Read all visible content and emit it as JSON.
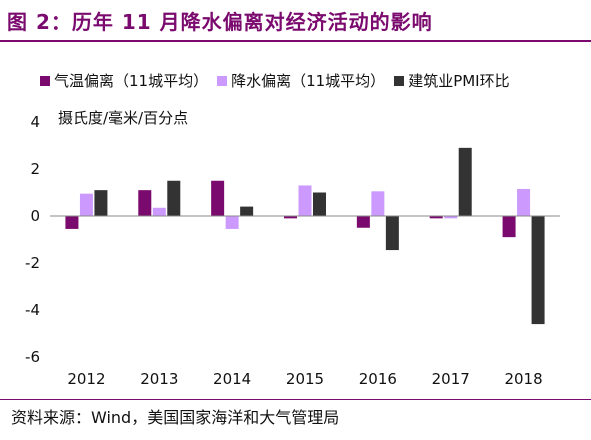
{
  "title": "图 2：历年 11 月降水偏离对经济活动的影响",
  "unit_label": "摄氏度/毫米/百分点",
  "source": "资料来源：Wind，美国国家海洋和大气管理局",
  "colors": {
    "accent": "#7b0a6e",
    "temp": "#7b0a6e",
    "precip": "#cc99ff",
    "pmi": "#333333"
  },
  "chart_data": {
    "type": "bar",
    "categories": [
      "2012",
      "2013",
      "2014",
      "2015",
      "2016",
      "2017",
      "2018"
    ],
    "series": [
      {
        "name": "气温偏离（11城平均）",
        "values": [
          -0.55,
          1.1,
          1.5,
          -0.1,
          -0.5,
          -0.1,
          -0.9
        ]
      },
      {
        "name": "降水偏离（11城平均）",
        "values": [
          0.95,
          0.35,
          -0.55,
          1.3,
          1.05,
          -0.1,
          1.15
        ]
      },
      {
        "name": "建筑业PMI环比",
        "values": [
          1.1,
          1.5,
          0.4,
          1.0,
          -1.45,
          2.9,
          -4.6
        ]
      }
    ],
    "yticks": [
      "4",
      "2",
      "0",
      "-2",
      "-4",
      "-6"
    ],
    "ylim": [
      -6,
      4
    ],
    "legend_position": "top",
    "grid": false
  }
}
